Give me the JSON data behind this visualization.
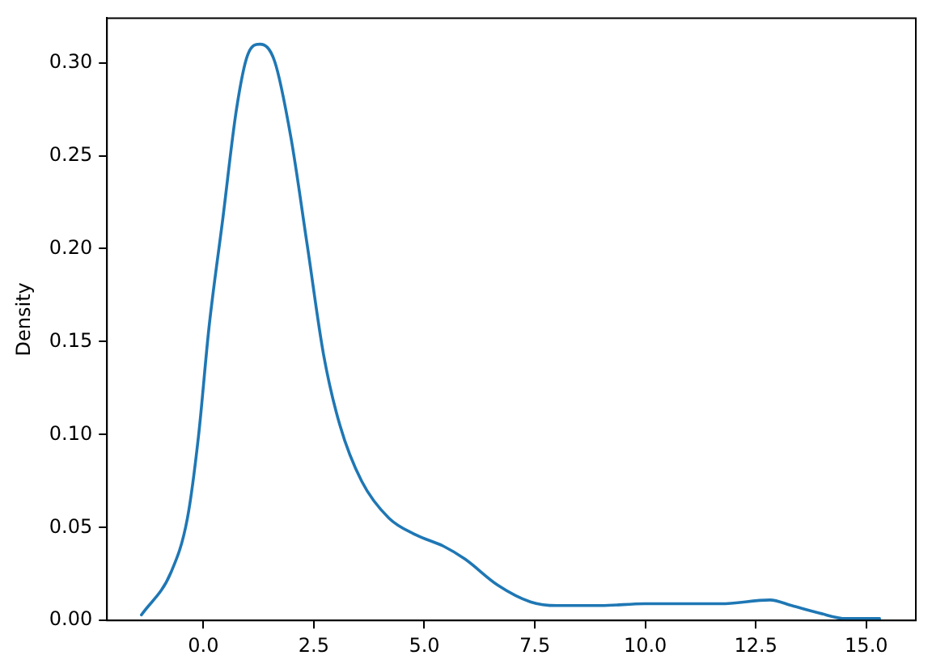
{
  "chart_data": {
    "type": "line",
    "ylabel": "Density",
    "x": [
      -1.4,
      -0.73,
      -0.36,
      -0.11,
      0.13,
      0.44,
      0.75,
      1.0,
      1.28,
      1.61,
      1.98,
      2.35,
      2.72,
      3.09,
      3.58,
      4.2,
      4.81,
      5.43,
      5.92,
      6.66,
      7.4,
      8.0,
      9.0,
      9.99,
      10.85,
      11.71,
      12.82,
      13.31,
      13.93,
      14.54,
      15.3
    ],
    "series": [
      {
        "color": "#1f77b4",
        "values": [
          0.003,
          0.026,
          0.055,
          0.099,
          0.158,
          0.216,
          0.275,
          0.304,
          0.31,
          0.301,
          0.26,
          0.202,
          0.143,
          0.105,
          0.075,
          0.055,
          0.046,
          0.04,
          0.033,
          0.019,
          0.01,
          0.008,
          0.008,
          0.009,
          0.009,
          0.009,
          0.011,
          0.008,
          0.004,
          0.001,
          0.001
        ]
      }
    ],
    "xlim": [
      -2.18,
      16.12
    ],
    "ylim": [
      0,
      0.324
    ],
    "xticks": [
      {
        "value": 0,
        "label": "0.0"
      },
      {
        "value": 2.5,
        "label": "2.5"
      },
      {
        "value": 5,
        "label": "5.0"
      },
      {
        "value": 7.5,
        "label": "7.5"
      },
      {
        "value": 10,
        "label": "10.0"
      },
      {
        "value": 12.5,
        "label": "12.5"
      },
      {
        "value": 15,
        "label": "15.0"
      }
    ],
    "yticks": [
      {
        "value": 0,
        "label": "0.00"
      },
      {
        "value": 0.05,
        "label": "0.05"
      },
      {
        "value": 0.1,
        "label": "0.10"
      },
      {
        "value": 0.15,
        "label": "0.15"
      },
      {
        "value": 0.2,
        "label": "0.20"
      },
      {
        "value": 0.25,
        "label": "0.25"
      },
      {
        "value": 0.3,
        "label": "0.30"
      }
    ],
    "grid": false,
    "legend": false,
    "marker": "none",
    "line_style": "solid"
  }
}
